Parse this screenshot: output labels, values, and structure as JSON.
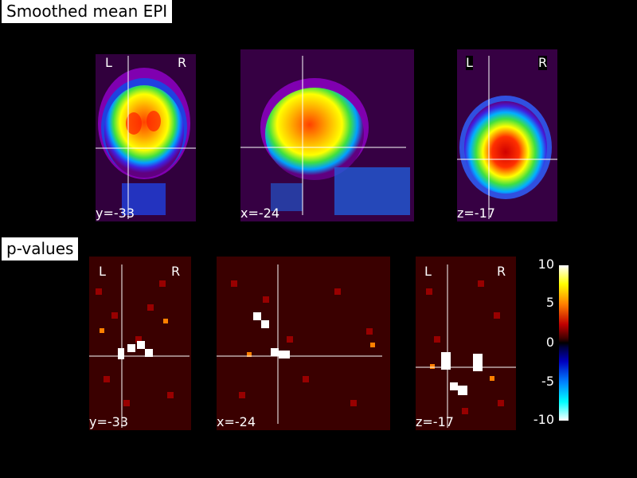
{
  "sections": {
    "epi": {
      "title": "Smoothed mean EPI",
      "coronal": {
        "orient_left": "L",
        "orient_right": "R",
        "coord": "y=-33"
      },
      "sagittal": {
        "coord": "x=-24"
      },
      "axial": {
        "orient_left": "L",
        "orient_right": "R",
        "coord": "z=-17"
      }
    },
    "pvalues": {
      "title": "p-values",
      "coronal": {
        "orient_left": "L",
        "orient_right": "R",
        "coord": "y=-33"
      },
      "sagittal": {
        "coord": "x=-24"
      },
      "axial": {
        "orient_left": "L",
        "orient_right": "R",
        "coord": "z=-17"
      }
    }
  },
  "colorbar": {
    "ticks": [
      "10",
      "5",
      "0",
      "-5",
      "-10"
    ],
    "range": [
      -10,
      10
    ]
  },
  "colors": {
    "background": "#000000",
    "crosshair": "#ffffff"
  }
}
